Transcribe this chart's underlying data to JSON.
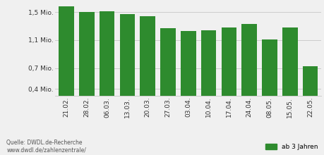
{
  "categories": [
    "21.02.",
    "28.02.",
    "06.03.",
    "13.03.",
    "20.03.",
    "27.03.",
    "03.04.",
    "10.04.",
    "17.04.",
    "24.04.",
    "08.05.",
    "15.05.",
    "22.05."
  ],
  "values": [
    1.58,
    1.5,
    1.51,
    1.47,
    1.44,
    1.27,
    1.23,
    1.24,
    1.28,
    1.33,
    1.11,
    1.28,
    0.73
  ],
  "bar_color": "#2e8b2e",
  "background_color": "#f0f0f0",
  "yticks": [
    0.4,
    0.7,
    1.1,
    1.5
  ],
  "ytick_labels": [
    "0,4 Mio.",
    "0,7 Mio.",
    "1,1 Mio.",
    "1,5 Mio."
  ],
  "ylim": [
    0.3,
    1.65
  ],
  "source_text": "Quelle: DWDL.de-Recherche\nwww.dwdl.de/zahlenzentrale/",
  "legend_label": "ab 3 Jahren",
  "grid_color": "#cccccc",
  "text_color": "#555555"
}
